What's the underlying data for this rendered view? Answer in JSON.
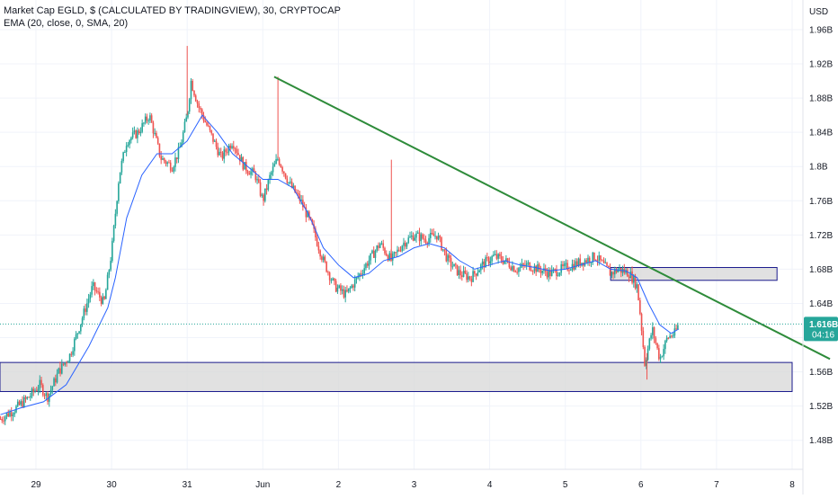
{
  "legend": {
    "title": "Market Cap EGLD, $ (CALCULATED BY TRADINGVIEW), 30, CRYPTOCAP",
    "indicator": "EMA (20, close, 0, SMA, 20)"
  },
  "price_scale": {
    "currency": "USD",
    "last_price_label": "1.616B",
    "countdown_label": "04:16"
  },
  "colors": {
    "up": "#26a69a",
    "down": "#ef5350",
    "ema": "#2962ff",
    "trendline": "#2e8b3a",
    "zone_fill": "#d9d9d9",
    "zone_border": "#1a1a8c",
    "last_price": "#26a69a",
    "grid": "#f0f3fa"
  },
  "chart_data": {
    "type": "candlestick",
    "title": "Market Cap EGLD, $ (CALCULATED BY TRADINGVIEW), 30, CRYPTOCAP",
    "y_unit": "USD",
    "ylim": [
      1.46,
      1.98
    ],
    "y_ticks": [
      "1.48B",
      "1.52B",
      "1.56B",
      "1.6B",
      "1.64B",
      "1.68B",
      "1.72B",
      "1.76B",
      "1.8B",
      "1.84B",
      "1.88B",
      "1.92B",
      "1.96B"
    ],
    "y_tick_values": [
      1.48,
      1.52,
      1.56,
      1.6,
      1.64,
      1.68,
      1.72,
      1.76,
      1.8,
      1.84,
      1.88,
      1.92,
      1.96
    ],
    "x_ticks": [
      "29",
      "30",
      "31",
      "Jun",
      "2",
      "3",
      "4",
      "5",
      "6",
      "7",
      "8"
    ],
    "x_tick_days": [
      0,
      1,
      2,
      3,
      4,
      5,
      6,
      7,
      8,
      9,
      10
    ],
    "x_unit_note": "day index; 0 = 29 May",
    "grid": true,
    "series": [
      {
        "name": "Market Cap EGLD",
        "kind": "close",
        "points": [
          [
            -0.47,
            1.505
          ],
          [
            -0.3,
            1.515
          ],
          [
            -0.1,
            1.53
          ],
          [
            0.05,
            1.545
          ],
          [
            0.15,
            1.53
          ],
          [
            0.3,
            1.56
          ],
          [
            0.45,
            1.58
          ],
          [
            0.6,
            1.62
          ],
          [
            0.75,
            1.66
          ],
          [
            0.9,
            1.64
          ],
          [
            1.0,
            1.7
          ],
          [
            1.1,
            1.79
          ],
          [
            1.2,
            1.83
          ],
          [
            1.35,
            1.84
          ],
          [
            1.5,
            1.86
          ],
          [
            1.65,
            1.81
          ],
          [
            1.8,
            1.8
          ],
          [
            1.9,
            1.82
          ],
          [
            2.0,
            1.86
          ],
          [
            2.05,
            1.9
          ],
          [
            2.15,
            1.87
          ],
          [
            2.3,
            1.84
          ],
          [
            2.45,
            1.81
          ],
          [
            2.6,
            1.83
          ],
          [
            2.75,
            1.8
          ],
          [
            2.9,
            1.79
          ],
          [
            3.0,
            1.76
          ],
          [
            3.1,
            1.79
          ],
          [
            3.2,
            1.81
          ],
          [
            3.35,
            1.78
          ],
          [
            3.5,
            1.76
          ],
          [
            3.65,
            1.73
          ],
          [
            3.8,
            1.69
          ],
          [
            3.95,
            1.66
          ],
          [
            4.1,
            1.65
          ],
          [
            4.25,
            1.67
          ],
          [
            4.4,
            1.69
          ],
          [
            4.55,
            1.71
          ],
          [
            4.7,
            1.69
          ],
          [
            4.85,
            1.71
          ],
          [
            5.0,
            1.72
          ],
          [
            5.15,
            1.715
          ],
          [
            5.3,
            1.72
          ],
          [
            5.45,
            1.69
          ],
          [
            5.6,
            1.675
          ],
          [
            5.75,
            1.67
          ],
          [
            5.9,
            1.685
          ],
          [
            6.05,
            1.695
          ],
          [
            6.2,
            1.69
          ],
          [
            6.35,
            1.68
          ],
          [
            6.5,
            1.685
          ],
          [
            6.65,
            1.68
          ],
          [
            6.8,
            1.675
          ],
          [
            6.95,
            1.68
          ],
          [
            7.1,
            1.685
          ],
          [
            7.25,
            1.69
          ],
          [
            7.4,
            1.695
          ],
          [
            7.5,
            1.685
          ],
          [
            7.6,
            1.675
          ],
          [
            7.7,
            1.68
          ],
          [
            7.85,
            1.675
          ],
          [
            7.95,
            1.66
          ],
          [
            8.0,
            1.62
          ],
          [
            8.05,
            1.57
          ],
          [
            8.15,
            1.61
          ],
          [
            8.25,
            1.575
          ],
          [
            8.35,
            1.6
          ],
          [
            8.45,
            1.605
          ],
          [
            8.5,
            1.616
          ]
        ]
      },
      {
        "name": "EMA (20, close, 0, SMA, 20)",
        "kind": "line",
        "points": [
          [
            -0.47,
            1.51
          ],
          [
            -0.2,
            1.518
          ],
          [
            0.1,
            1.525
          ],
          [
            0.4,
            1.545
          ],
          [
            0.7,
            1.59
          ],
          [
            0.95,
            1.635
          ],
          [
            1.05,
            1.67
          ],
          [
            1.2,
            1.74
          ],
          [
            1.4,
            1.79
          ],
          [
            1.6,
            1.815
          ],
          [
            1.8,
            1.815
          ],
          [
            2.0,
            1.83
          ],
          [
            2.2,
            1.86
          ],
          [
            2.4,
            1.84
          ],
          [
            2.6,
            1.815
          ],
          [
            2.8,
            1.8
          ],
          [
            3.0,
            1.785
          ],
          [
            3.2,
            1.785
          ],
          [
            3.4,
            1.775
          ],
          [
            3.6,
            1.745
          ],
          [
            3.8,
            1.705
          ],
          [
            4.0,
            1.685
          ],
          [
            4.2,
            1.67
          ],
          [
            4.4,
            1.675
          ],
          [
            4.6,
            1.69
          ],
          [
            4.8,
            1.695
          ],
          [
            5.0,
            1.705
          ],
          [
            5.2,
            1.71
          ],
          [
            5.4,
            1.705
          ],
          [
            5.6,
            1.69
          ],
          [
            5.8,
            1.68
          ],
          [
            6.0,
            1.685
          ],
          [
            6.2,
            1.69
          ],
          [
            6.4,
            1.685
          ],
          [
            6.6,
            1.682
          ],
          [
            6.8,
            1.678
          ],
          [
            7.0,
            1.68
          ],
          [
            7.2,
            1.685
          ],
          [
            7.4,
            1.69
          ],
          [
            7.6,
            1.68
          ],
          [
            7.8,
            1.678
          ],
          [
            7.95,
            1.67
          ],
          [
            8.1,
            1.64
          ],
          [
            8.25,
            1.615
          ],
          [
            8.4,
            1.605
          ],
          [
            8.5,
            1.61
          ]
        ]
      }
    ],
    "spikes": [
      [
        0.32,
        1.572
      ],
      [
        2.0,
        1.941
      ],
      [
        3.2,
        1.905
      ],
      [
        4.7,
        1.808
      ],
      [
        8.08,
        1.551
      ]
    ],
    "trendline": {
      "from": [
        3.15,
        1.905
      ],
      "to": [
        10.5,
        1.575
      ]
    },
    "zones": [
      {
        "x": [
          -0.5,
          10.0
        ],
        "y": [
          1.537,
          1.571
        ]
      },
      {
        "x": [
          7.6,
          9.8
        ],
        "y": [
          1.667,
          1.682
        ]
      }
    ],
    "last_price": 1.616
  }
}
